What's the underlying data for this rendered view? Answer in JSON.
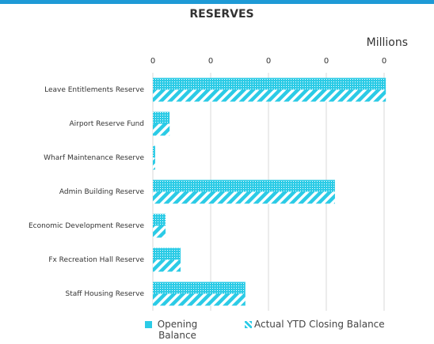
{
  "chart_data": {
    "type": "hbar",
    "title": "RESERVES",
    "unit_label": "Millions",
    "categories": [
      "Leave Entitlements Reserve",
      "Airport Reserve Fund",
      "Wharf Maintenance Reserve",
      "Admin Building Reserve",
      "Economic Development Reserve",
      "Fx Recreation Hall Reserve",
      "Staff Housing Reserve"
    ],
    "series": [
      {
        "name": "Opening Balance",
        "color": "#2bcbe6",
        "pattern": "dots",
        "values": [
          0.403,
          0.029,
          0.004,
          0.315,
          0.022,
          0.048,
          0.16
        ]
      },
      {
        "name": "Actual YTD Closing Balance",
        "color": "#2bcbe6",
        "pattern": "stripes",
        "values": [
          0.403,
          0.029,
          0.004,
          0.315,
          0.022,
          0.048,
          0.16
        ]
      }
    ],
    "xlim": [
      0,
      0.4
    ],
    "xticks": [
      {
        "value": 0,
        "label": "0"
      },
      {
        "value": 0.1,
        "label": "0"
      },
      {
        "value": 0.2,
        "label": "0"
      },
      {
        "value": 0.3,
        "label": "0"
      },
      {
        "value": 0.4,
        "label": "0"
      }
    ],
    "grid": true,
    "legend": "bottom"
  }
}
